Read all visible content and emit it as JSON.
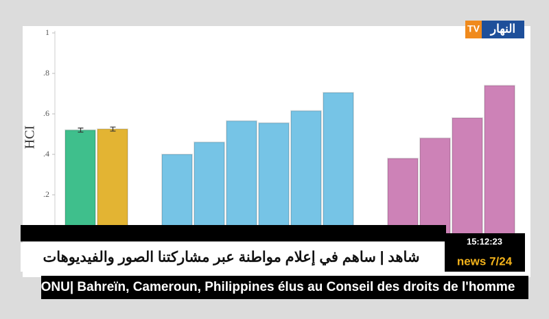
{
  "chart_data": {
    "type": "bar",
    "y_label": "HCI",
    "categories": [
      null,
      null,
      null,
      null,
      null,
      null,
      null,
      null,
      null,
      null,
      null,
      null,
      null,
      null
    ],
    "values": [
      0.52,
      0.525,
      null,
      0.4,
      0.46,
      0.565,
      0.555,
      0.615,
      0.705,
      null,
      0.38,
      0.48,
      0.58,
      0.74
    ],
    "errors": [
      0.01,
      0.01,
      null,
      null,
      null,
      null,
      null,
      null,
      null,
      null,
      null,
      null,
      null,
      null
    ],
    "colors": [
      "#3fbf8c",
      "#e3b433",
      null,
      "#76c4e6",
      "#76c4e6",
      "#76c4e6",
      "#76c4e6",
      "#76c4e6",
      "#76c4e6",
      null,
      "#cd82b7",
      "#cd82b7",
      "#cd82b7",
      "#cd82b7"
    ],
    "ylim": [
      0,
      1
    ],
    "yticks": [
      {
        "value": 0.2,
        "label": ".2"
      },
      {
        "value": 0.4,
        "label": ".4"
      },
      {
        "value": 0.6,
        "label": ".6"
      },
      {
        "value": 0.8,
        "label": ".8"
      },
      1
    ]
  },
  "logo": {
    "name": "النهار",
    "tv": "TV"
  },
  "ticker": {
    "headline": "شاهد | ساهم في إعلام مواطنة عبر مشاركتنا الصور والفيديوهات",
    "time": "15:12:23",
    "channel": "news 7/24",
    "news": "ONU| Bahreïn, Cameroun, Philippines élus au Conseil des droits de l'homme"
  }
}
